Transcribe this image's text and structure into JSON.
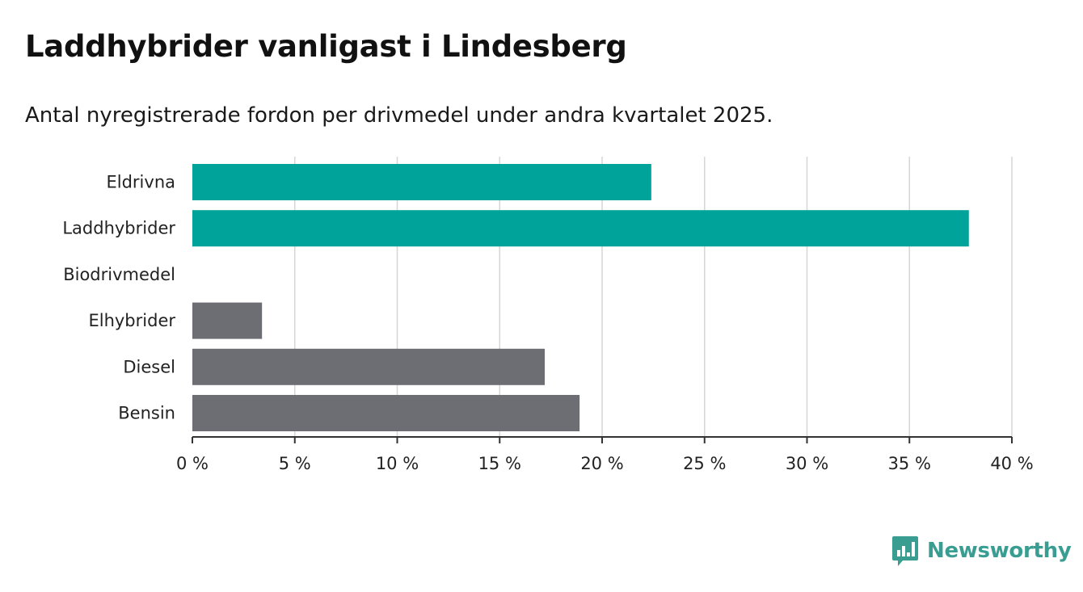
{
  "title": "Laddhybrider vanligast i Lindesberg",
  "subtitle": "Antal nyregistrerade fordon per drivmedel under andra kvartalet 2025.",
  "brand": {
    "name": "Newsworthy",
    "icon": "bar-chart-logo-icon",
    "color": "#3a9d92"
  },
  "chart_data": {
    "type": "bar",
    "orientation": "horizontal",
    "categories": [
      "Eldrivna",
      "Laddhybrider",
      "Biodrivmedel",
      "Elhybrider",
      "Diesel",
      "Bensin"
    ],
    "values": [
      22.4,
      37.9,
      0,
      3.4,
      17.2,
      18.9
    ],
    "colors": [
      "#00a399",
      "#00a399",
      "#00a399",
      "#6d6d74",
      "#6d6d74",
      "#6d6d74"
    ],
    "xlim": [
      0,
      40
    ],
    "ticks": [
      0,
      5,
      10,
      15,
      20,
      25,
      30,
      35,
      40
    ],
    "tick_labels": [
      "0 %",
      "5 %",
      "10 %",
      "15 %",
      "20 %",
      "25 %",
      "30 %",
      "35 %",
      "40 %"
    ],
    "grid": true,
    "unit": "%"
  }
}
